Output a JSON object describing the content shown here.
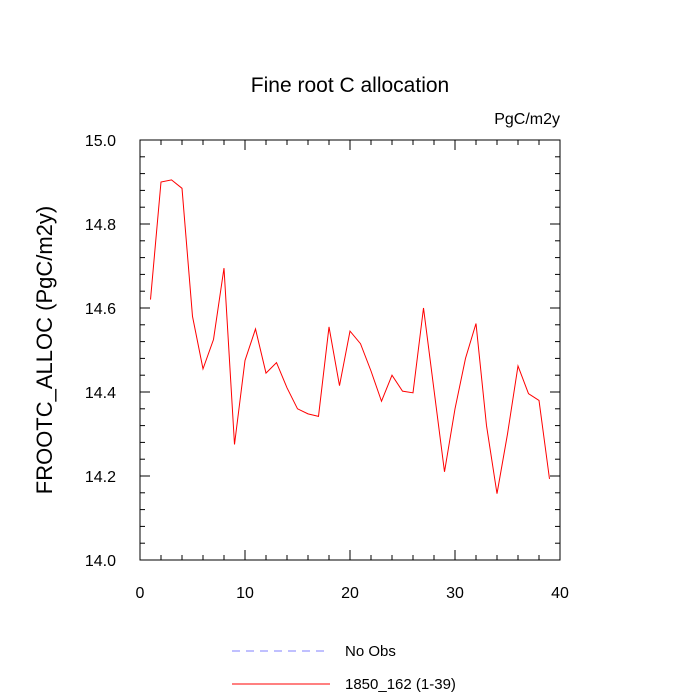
{
  "chart_data": {
    "type": "line",
    "title": "Fine root C allocation",
    "units": "PgC/m2y",
    "xlabel": "",
    "ylabel": "FROOTC_ALLOC  (PgC/m2y)",
    "xlim": [
      0,
      40
    ],
    "ylim": [
      14.0,
      15.0
    ],
    "x_ticks": [
      "0",
      "10",
      "20",
      "30",
      "40"
    ],
    "y_ticks": [
      "14.0",
      "14.2",
      "14.4",
      "14.6",
      "14.8",
      "15.0"
    ],
    "grid": false,
    "legend_position": "bottom",
    "series": [
      {
        "name": "No Obs",
        "color": "#8080ff",
        "style": "dashed",
        "x": [],
        "values": []
      },
      {
        "name": "1850_162 (1-39)",
        "color": "#ff0000",
        "style": "solid",
        "x": [
          1,
          2,
          3,
          4,
          5,
          6,
          7,
          8,
          9,
          10,
          11,
          12,
          13,
          14,
          15,
          16,
          17,
          18,
          19,
          20,
          21,
          22,
          23,
          24,
          25,
          26,
          27,
          28,
          29,
          30,
          31,
          32,
          33,
          34,
          35,
          36,
          37,
          38,
          39
        ],
        "values": [
          14.62,
          14.9,
          14.905,
          14.885,
          14.58,
          14.455,
          14.525,
          14.695,
          14.275,
          14.475,
          14.55,
          14.445,
          14.47,
          14.41,
          14.36,
          14.348,
          14.342,
          14.555,
          14.415,
          14.545,
          14.515,
          14.45,
          14.378,
          14.44,
          14.402,
          14.398,
          14.6,
          14.405,
          14.21,
          14.36,
          14.48,
          14.563,
          14.32,
          14.158,
          14.3,
          14.462,
          14.396,
          14.38,
          14.193
        ]
      }
    ]
  }
}
